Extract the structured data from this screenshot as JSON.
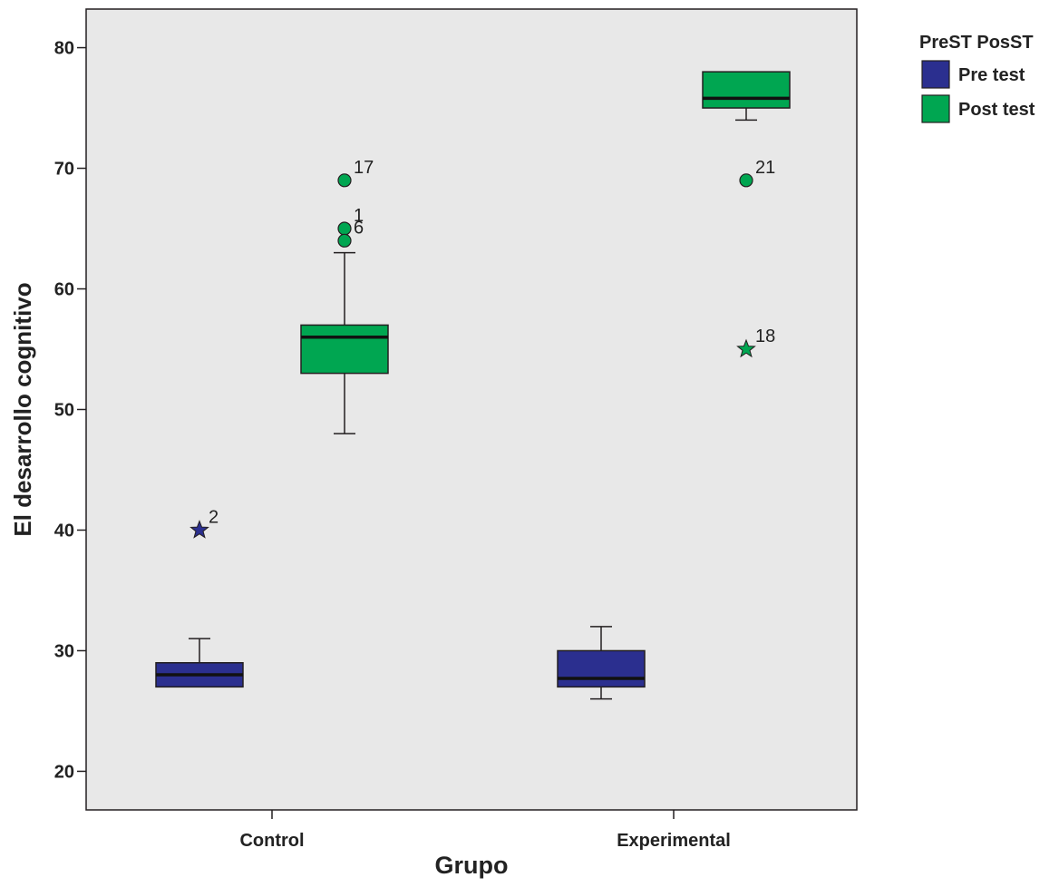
{
  "chart_data": {
    "type": "boxplot",
    "xlabel": "Grupo",
    "ylabel": "El desarrollo cognitivo",
    "ylim": [
      16.8,
      83.2
    ],
    "yticks": [
      20,
      30,
      40,
      50,
      60,
      70,
      80
    ],
    "categories": [
      "Control",
      "Experimental"
    ],
    "grid": false,
    "legend": {
      "title": "PreST PosST",
      "placement": "top-right, outside plot",
      "entries": [
        "Pre test",
        "Post test"
      ]
    },
    "series": [
      {
        "name": "Pre test",
        "color": "#2b2f8f",
        "boxes": [
          {
            "category": "Control",
            "min": 27,
            "q1": 27,
            "median": 28,
            "q3": 29,
            "max": 31,
            "outliers": [
              {
                "value": 40,
                "label": "2",
                "marker": "star"
              }
            ]
          },
          {
            "category": "Experimental",
            "min": 26,
            "q1": 27,
            "median": 27.7,
            "q3": 30,
            "max": 32,
            "outliers": []
          }
        ]
      },
      {
        "name": "Post test",
        "color": "#00a651",
        "boxes": [
          {
            "category": "Control",
            "min": 48,
            "q1": 53,
            "median": 56,
            "q3": 57,
            "max": 63,
            "outliers": [
              {
                "value": 69,
                "label": "17",
                "marker": "circle"
              },
              {
                "value": 65,
                "label": "1",
                "marker": "circle"
              },
              {
                "value": 64,
                "label": "6",
                "marker": "circle"
              }
            ]
          },
          {
            "category": "Experimental",
            "min": 74,
            "q1": 75,
            "median": 75.8,
            "q3": 78,
            "max": 78,
            "outliers": [
              {
                "value": 69,
                "label": "21",
                "marker": "circle"
              },
              {
                "value": 55,
                "label": "18",
                "marker": "star"
              }
            ]
          }
        ]
      }
    ]
  },
  "colors": {
    "plot_background": "#e8e8e8",
    "axis": "#231f20"
  }
}
